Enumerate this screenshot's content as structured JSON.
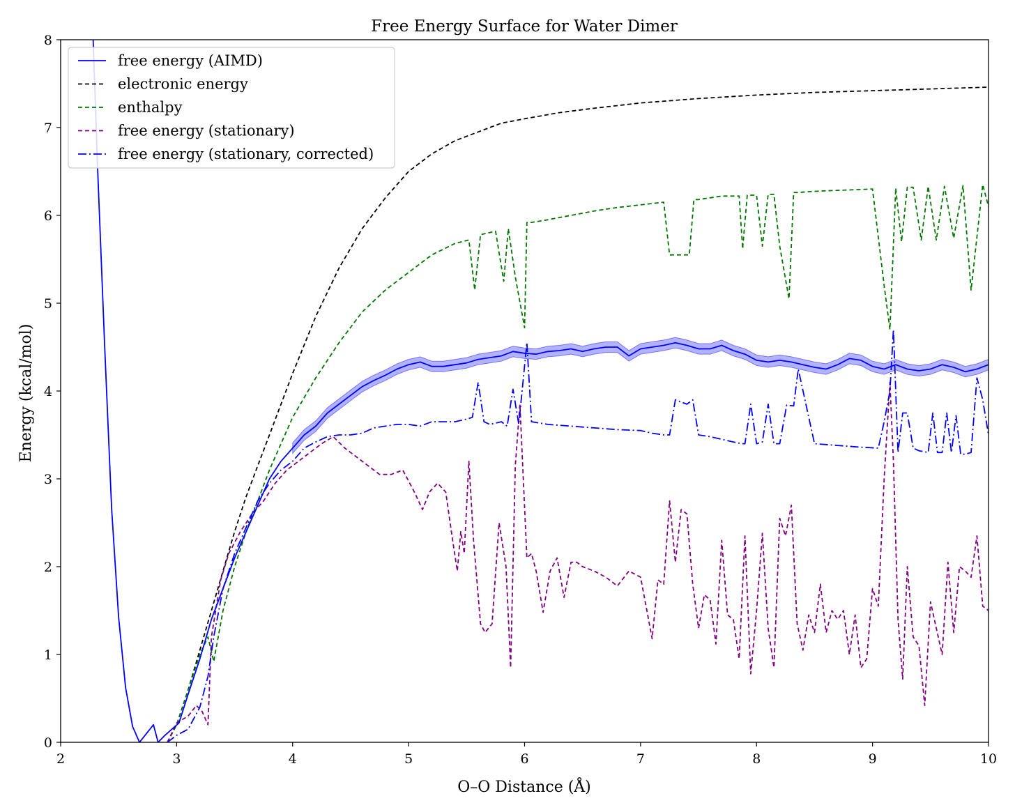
{
  "chart_data": {
    "type": "line",
    "title": "Free Energy Surface for Water Dimer",
    "xlabel": "O–O Distance (Å)",
    "ylabel": "Energy (kcal/mol)",
    "xlim": [
      2,
      10
    ],
    "ylim": [
      0,
      8
    ],
    "xticks": [
      "2",
      "3",
      "4",
      "5",
      "6",
      "7",
      "8",
      "9",
      "10"
    ],
    "yticks": [
      "0",
      "1",
      "2",
      "3",
      "4",
      "5",
      "6",
      "7",
      "8"
    ],
    "grid": false,
    "legend_position": "upper-left",
    "series": [
      {
        "name": "free energy (AIMD)",
        "color": "#0000ff",
        "style": "solid",
        "x": [
          2.28,
          2.32,
          2.38,
          2.44,
          2.5,
          2.56,
          2.62,
          2.68,
          2.74,
          2.8,
          2.84,
          2.9,
          2.96,
          3.02,
          3.1,
          3.2,
          3.3,
          3.4,
          3.5,
          3.6,
          3.7,
          3.8,
          3.9,
          4.0,
          4.1,
          4.2,
          4.3,
          4.4,
          4.5,
          4.6,
          4.7,
          4.8,
          4.9,
          5.0,
          5.1,
          5.2,
          5.3,
          5.4,
          5.5,
          5.6,
          5.7,
          5.8,
          5.9,
          6.0,
          6.1,
          6.2,
          6.3,
          6.4,
          6.5,
          6.6,
          6.7,
          6.8,
          6.9,
          7.0,
          7.1,
          7.2,
          7.3,
          7.4,
          7.5,
          7.6,
          7.7,
          7.8,
          7.9,
          8.0,
          8.1,
          8.2,
          8.3,
          8.4,
          8.5,
          8.6,
          8.7,
          8.8,
          8.9,
          9.0,
          9.1,
          9.2,
          9.3,
          9.4,
          9.5,
          9.6,
          9.7,
          9.8,
          9.9,
          10.0
        ],
        "y": [
          8.0,
          6.5,
          4.5,
          2.65,
          1.42,
          0.62,
          0.18,
          0.0,
          0.1,
          0.2,
          0.0,
          0.08,
          0.15,
          0.22,
          0.55,
          0.95,
          1.4,
          1.75,
          2.1,
          2.4,
          2.7,
          3.0,
          3.2,
          3.35,
          3.5,
          3.6,
          3.75,
          3.85,
          3.95,
          4.05,
          4.12,
          4.18,
          4.25,
          4.3,
          4.33,
          4.28,
          4.28,
          4.3,
          4.32,
          4.36,
          4.38,
          4.4,
          4.45,
          4.43,
          4.42,
          4.45,
          4.46,
          4.48,
          4.45,
          4.48,
          4.5,
          4.5,
          4.4,
          4.48,
          4.5,
          4.52,
          4.55,
          4.52,
          4.48,
          4.48,
          4.52,
          4.46,
          4.42,
          4.35,
          4.33,
          4.35,
          4.33,
          4.3,
          4.27,
          4.25,
          4.3,
          4.37,
          4.35,
          4.28,
          4.25,
          4.3,
          4.25,
          4.23,
          4.25,
          4.3,
          4.27,
          4.22,
          4.25,
          4.3
        ]
      },
      {
        "name": "electronic energy",
        "color": "#000000",
        "style": "dashed",
        "x": [
          2.92,
          3.0,
          3.1,
          3.2,
          3.3,
          3.4,
          3.5,
          3.6,
          3.7,
          3.8,
          3.9,
          4.0,
          4.2,
          4.4,
          4.6,
          4.8,
          5.0,
          5.2,
          5.4,
          5.6,
          5.8,
          6.0,
          6.3,
          6.6,
          7.0,
          7.5,
          8.0,
          8.5,
          9.0,
          9.5,
          10.0
        ],
        "y": [
          0.0,
          0.2,
          0.6,
          1.05,
          1.5,
          1.95,
          2.4,
          2.8,
          3.15,
          3.5,
          3.85,
          4.2,
          4.85,
          5.4,
          5.85,
          6.2,
          6.5,
          6.7,
          6.85,
          6.95,
          7.05,
          7.1,
          7.17,
          7.22,
          7.28,
          7.33,
          7.37,
          7.4,
          7.42,
          7.44,
          7.46
        ]
      },
      {
        "name": "enthalpy",
        "color": "#007700",
        "style": "dashed",
        "x": [
          2.92,
          3.0,
          3.1,
          3.2,
          3.27,
          3.32,
          3.4,
          3.5,
          3.6,
          3.7,
          3.8,
          3.9,
          4.0,
          4.2,
          4.4,
          4.6,
          4.8,
          5.0,
          5.2,
          5.4,
          5.52,
          5.57,
          5.62,
          5.75,
          5.82,
          5.86,
          5.92,
          6.0,
          6.02,
          6.06,
          6.2,
          6.4,
          6.6,
          6.8,
          7.0,
          7.2,
          7.25,
          7.28,
          7.42,
          7.46,
          7.5,
          7.6,
          7.7,
          7.85,
          7.88,
          7.92,
          8.0,
          8.05,
          8.1,
          8.15,
          8.2,
          8.28,
          8.32,
          8.36,
          8.45,
          8.6,
          8.8,
          9.0,
          9.1,
          9.15,
          9.2,
          9.25,
          9.3,
          9.35,
          9.42,
          9.48,
          9.55,
          9.62,
          9.7,
          9.78,
          9.85,
          9.95,
          10.0
        ],
        "y": [
          0.0,
          0.2,
          0.6,
          1.0,
          1.2,
          0.92,
          1.5,
          2.0,
          2.4,
          2.75,
          3.1,
          3.4,
          3.7,
          4.15,
          4.55,
          4.9,
          5.15,
          5.35,
          5.55,
          5.68,
          5.72,
          5.15,
          5.78,
          5.82,
          5.25,
          5.85,
          5.3,
          4.72,
          5.92,
          5.92,
          5.95,
          6.0,
          6.05,
          6.09,
          6.12,
          6.15,
          5.55,
          5.55,
          5.55,
          6.18,
          6.18,
          6.2,
          6.22,
          6.22,
          5.62,
          6.23,
          6.23,
          5.65,
          6.24,
          6.24,
          5.65,
          5.05,
          6.26,
          6.26,
          6.27,
          6.28,
          6.29,
          6.3,
          5.2,
          4.7,
          6.31,
          5.7,
          6.32,
          6.32,
          5.72,
          6.33,
          5.72,
          6.33,
          5.74,
          6.34,
          5.15,
          6.35,
          6.1
        ]
      },
      {
        "name": "free energy (stationary)",
        "color": "#800080",
        "style": "dashed",
        "x": [
          2.92,
          3.0,
          3.1,
          3.17,
          3.22,
          3.27,
          3.3,
          3.38,
          3.45,
          3.55,
          3.65,
          3.75,
          3.85,
          3.95,
          4.05,
          4.15,
          4.25,
          4.35,
          4.45,
          4.55,
          4.65,
          4.75,
          4.85,
          4.95,
          5.05,
          5.12,
          5.18,
          5.25,
          5.32,
          5.38,
          5.42,
          5.45,
          5.48,
          5.52,
          5.56,
          5.62,
          5.66,
          5.72,
          5.78,
          5.84,
          5.88,
          5.92,
          5.96,
          6.02,
          6.06,
          6.1,
          6.16,
          6.22,
          6.28,
          6.34,
          6.4,
          6.45,
          6.5,
          6.6,
          6.7,
          6.8,
          6.9,
          7.0,
          7.1,
          7.15,
          7.2,
          7.25,
          7.3,
          7.35,
          7.4,
          7.45,
          7.5,
          7.55,
          7.6,
          7.65,
          7.7,
          7.75,
          7.8,
          7.85,
          7.9,
          7.95,
          8.0,
          8.05,
          8.1,
          8.15,
          8.2,
          8.25,
          8.3,
          8.35,
          8.4,
          8.45,
          8.5,
          8.55,
          8.6,
          8.65,
          8.7,
          8.75,
          8.8,
          8.85,
          8.9,
          8.95,
          9.0,
          9.05,
          9.1,
          9.15,
          9.18,
          9.22,
          9.26,
          9.3,
          9.35,
          9.4,
          9.45,
          9.5,
          9.55,
          9.6,
          9.65,
          9.7,
          9.75,
          9.8,
          9.85,
          9.9,
          9.95,
          10.0
        ],
        "y": [
          0.0,
          0.22,
          0.3,
          0.42,
          0.35,
          0.2,
          1.2,
          1.85,
          2.15,
          2.4,
          2.6,
          2.75,
          2.95,
          3.1,
          3.2,
          3.3,
          3.4,
          3.48,
          3.35,
          3.25,
          3.15,
          3.05,
          3.05,
          3.1,
          2.85,
          2.65,
          2.85,
          2.95,
          2.85,
          2.3,
          1.95,
          2.4,
          2.15,
          3.2,
          2.3,
          1.35,
          1.25,
          1.35,
          2.5,
          2.0,
          0.85,
          3.15,
          3.85,
          2.1,
          2.15,
          1.95,
          1.48,
          1.95,
          2.1,
          1.65,
          2.05,
          2.05,
          2.0,
          1.95,
          1.88,
          1.78,
          1.95,
          1.88,
          1.18,
          1.85,
          1.8,
          2.75,
          2.05,
          2.65,
          2.6,
          1.8,
          1.3,
          1.68,
          1.62,
          1.12,
          2.3,
          1.45,
          1.4,
          0.95,
          2.35,
          0.78,
          1.5,
          2.38,
          1.3,
          0.85,
          2.55,
          2.35,
          2.7,
          1.35,
          1.05,
          1.45,
          1.25,
          1.8,
          1.25,
          1.5,
          1.4,
          1.5,
          1.0,
          1.45,
          0.85,
          0.95,
          1.75,
          1.55,
          3.0,
          4.1,
          3.2,
          1.4,
          0.72,
          2.0,
          1.2,
          1.1,
          0.42,
          1.6,
          1.3,
          1.0,
          2.05,
          1.25,
          2.0,
          1.95,
          1.88,
          2.35,
          1.55,
          1.5
        ]
      },
      {
        "name": "free energy (stationary, corrected)",
        "color": "#0000ff",
        "style": "dashdot",
        "x": [
          2.92,
          3.0,
          3.1,
          3.2,
          3.27,
          3.32,
          3.4,
          3.5,
          3.6,
          3.7,
          3.8,
          3.9,
          4.0,
          4.1,
          4.2,
          4.3,
          4.4,
          4.5,
          4.6,
          4.7,
          4.8,
          4.9,
          5.0,
          5.1,
          5.2,
          5.3,
          5.4,
          5.5,
          5.55,
          5.6,
          5.65,
          5.7,
          5.8,
          5.85,
          5.9,
          5.95,
          6.02,
          6.06,
          6.2,
          6.4,
          6.6,
          6.8,
          7.0,
          7.1,
          7.2,
          7.25,
          7.3,
          7.4,
          7.45,
          7.5,
          7.6,
          7.7,
          7.8,
          7.87,
          7.9,
          7.95,
          8.0,
          8.05,
          8.1,
          8.15,
          8.2,
          8.26,
          8.32,
          8.36,
          8.5,
          8.7,
          8.9,
          9.05,
          9.1,
          9.15,
          9.18,
          9.22,
          9.26,
          9.3,
          9.35,
          9.4,
          9.48,
          9.52,
          9.56,
          9.6,
          9.64,
          9.68,
          9.72,
          9.76,
          9.8,
          9.85,
          9.9,
          9.95,
          10.0
        ],
        "y": [
          0.0,
          0.08,
          0.15,
          0.4,
          0.75,
          1.2,
          1.75,
          2.15,
          2.45,
          2.75,
          2.95,
          3.1,
          3.2,
          3.35,
          3.42,
          3.48,
          3.5,
          3.5,
          3.52,
          3.58,
          3.6,
          3.62,
          3.62,
          3.6,
          3.65,
          3.65,
          3.65,
          3.68,
          3.7,
          4.1,
          3.65,
          3.62,
          3.65,
          3.6,
          4.02,
          3.62,
          4.55,
          3.65,
          3.62,
          3.6,
          3.58,
          3.56,
          3.55,
          3.52,
          3.5,
          3.5,
          3.9,
          3.85,
          3.9,
          3.5,
          3.48,
          3.45,
          3.42,
          3.4,
          3.4,
          3.85,
          3.4,
          3.42,
          3.85,
          3.4,
          3.4,
          3.84,
          3.83,
          4.25,
          3.4,
          3.38,
          3.36,
          3.35,
          3.65,
          4.0,
          4.7,
          3.3,
          3.75,
          3.75,
          3.35,
          3.32,
          3.3,
          3.75,
          3.3,
          3.3,
          3.75,
          3.3,
          3.72,
          3.28,
          3.28,
          3.3,
          4.15,
          3.9,
          3.5
        ]
      }
    ],
    "band": {
      "series": "free energy (AIMD)",
      "color": "#0000ff",
      "half_width": 0.06
    }
  }
}
